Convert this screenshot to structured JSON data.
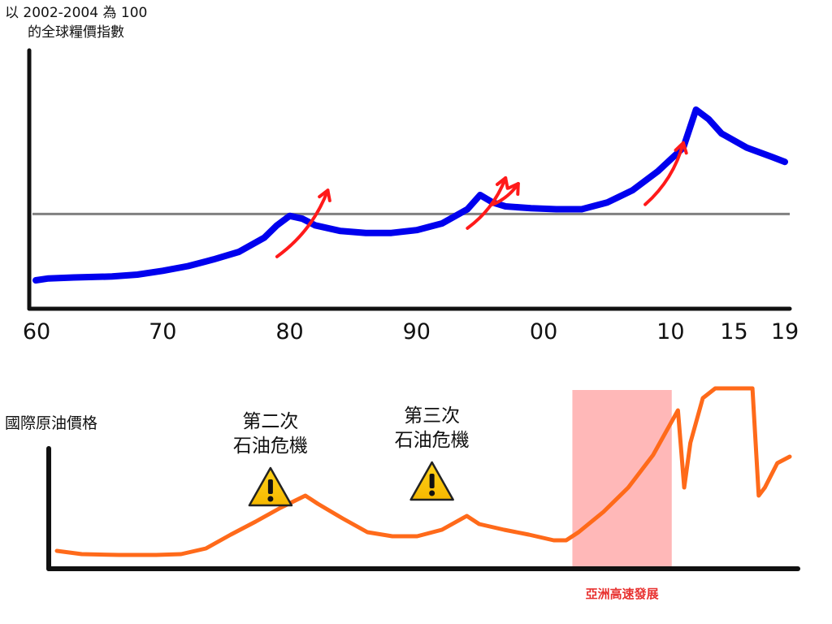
{
  "chart_data": [
    {
      "type": "line",
      "title": "",
      "ylabel_lines": [
        "以 2002-2004 為 100",
        "的全球糧價指數"
      ],
      "xlabel": "",
      "x_tick_labels": [
        "60",
        "70",
        "80",
        "90",
        "00",
        "10",
        "15",
        "19"
      ],
      "x_tick_values": [
        1960,
        1970,
        1980,
        1990,
        2000,
        2010,
        2015,
        2019
      ],
      "xlim": [
        1960,
        2019
      ],
      "ylim": [
        0,
        240
      ],
      "reference_line": {
        "y": 100,
        "color": "#808080"
      },
      "series": [
        {
          "color": "#0000ee",
          "points": [
            [
              1960,
              30
            ],
            [
              1961,
              32
            ],
            [
              1963,
              33
            ],
            [
              1966,
              34
            ],
            [
              1968,
              36
            ],
            [
              1970,
              40
            ],
            [
              1972,
              45
            ],
            [
              1974,
              52
            ],
            [
              1976,
              60
            ],
            [
              1978,
              75
            ],
            [
              1979,
              88
            ],
            [
              1980,
              98
            ],
            [
              1981,
              95
            ],
            [
              1982,
              88
            ],
            [
              1984,
              82
            ],
            [
              1986,
              80
            ],
            [
              1988,
              80
            ],
            [
              1990,
              83
            ],
            [
              1992,
              90
            ],
            [
              1994,
              105
            ],
            [
              1995,
              120
            ],
            [
              1996,
              112
            ],
            [
              1997,
              108
            ],
            [
              1999,
              106
            ],
            [
              2001,
              105
            ],
            [
              2003,
              105
            ],
            [
              2005,
              112
            ],
            [
              2007,
              125
            ],
            [
              2009,
              145
            ],
            [
              2011,
              170
            ],
            [
              2012,
              210
            ],
            [
              2013,
              200
            ],
            [
              2014,
              185
            ],
            [
              2016,
              170
            ],
            [
              2018,
              160
            ],
            [
              2019,
              155
            ]
          ]
        }
      ],
      "arrows": [
        {
          "from": [
            1979,
            55
          ],
          "to": [
            1983,
            125
          ],
          "color": "#ff1a1a"
        },
        {
          "from": [
            1994,
            85
          ],
          "to": [
            1997,
            138
          ],
          "color": "#ff1a1a"
        },
        {
          "from": [
            1996,
            110
          ],
          "to": [
            1998,
            132
          ],
          "color": "#ff1a1a"
        },
        {
          "from": [
            2008,
            110
          ],
          "to": [
            2011,
            175
          ],
          "color": "#ff1a1a"
        }
      ]
    },
    {
      "type": "line",
      "title": "",
      "ylabel": "國際原油價格",
      "xlim": [
        1960,
        2019
      ],
      "ylim": [
        0,
        230
      ],
      "series": [
        {
          "color": "#ff6a1a",
          "points": [
            [
              1960,
              22
            ],
            [
              1962,
              18
            ],
            [
              1965,
              17
            ],
            [
              1968,
              17
            ],
            [
              1970,
              18
            ],
            [
              1972,
              25
            ],
            [
              1974,
              42
            ],
            [
              1976,
              58
            ],
            [
              1978,
              75
            ],
            [
              1980,
              90
            ],
            [
              1981,
              80
            ],
            [
              1983,
              62
            ],
            [
              1985,
              45
            ],
            [
              1987,
              40
            ],
            [
              1989,
              40
            ],
            [
              1991,
              48
            ],
            [
              1993,
              65
            ],
            [
              1994,
              55
            ],
            [
              1996,
              48
            ],
            [
              1998,
              42
            ],
            [
              2000,
              35
            ],
            [
              2001,
              35
            ],
            [
              2002,
              45
            ],
            [
              2004,
              70
            ],
            [
              2006,
              100
            ],
            [
              2008,
              140
            ],
            [
              2010,
              195
            ],
            [
              2010.5,
              100
            ],
            [
              2011,
              155
            ],
            [
              2012,
              210
            ],
            [
              2013,
              222
            ],
            [
              2015,
              222
            ],
            [
              2016,
              222
            ],
            [
              2016.5,
              90
            ],
            [
              2017,
              100
            ],
            [
              2018,
              130
            ],
            [
              2019,
              138
            ]
          ]
        }
      ],
      "highlight": {
        "x_range": [
          2001.5,
          2009.5
        ],
        "color": "#ffb8b8",
        "label": "亞洲高速發展",
        "label_color": "#e8312f"
      },
      "annotations": [
        {
          "lines": [
            "第二次",
            "石油危機"
          ],
          "x": 1977,
          "icon": "warning-icon"
        },
        {
          "lines": [
            "第三次",
            "石油危機"
          ],
          "x": 1990,
          "icon": "warning-icon"
        }
      ]
    }
  ]
}
